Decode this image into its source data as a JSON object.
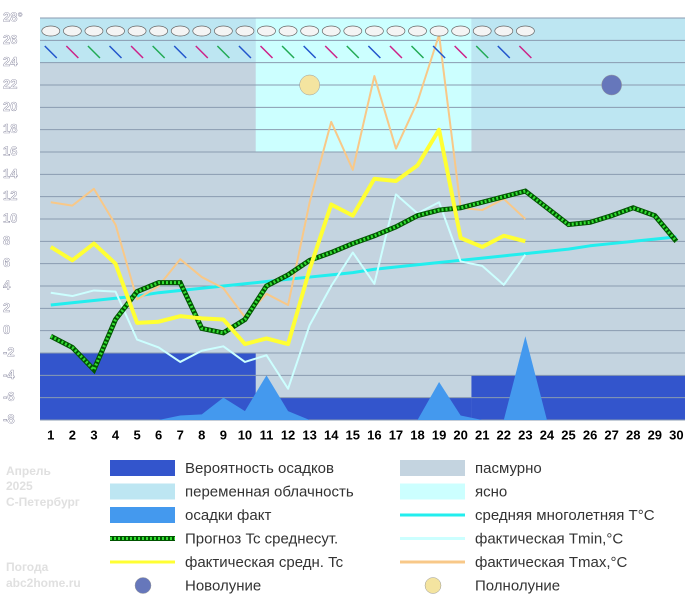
{
  "chart_data": {
    "type": "line",
    "side_texts": [
      "Апрель",
      "2025",
      "С-Петербург",
      "Погода",
      "abc2home.ru"
    ],
    "categories": [
      "1",
      "2",
      "3",
      "4",
      "5",
      "6",
      "7",
      "8",
      "9",
      "10",
      "11",
      "12",
      "13",
      "14",
      "15",
      "16",
      "17",
      "18",
      "19",
      "20",
      "21",
      "22",
      "23",
      "24",
      "25",
      "26",
      "27",
      "28",
      "29",
      "30"
    ],
    "weekend_color": "#ee0000",
    "weekend_categories": [
      4,
      5,
      11,
      12,
      18,
      19,
      25,
      26
    ],
    "xlim": [
      0.5,
      30.4
    ],
    "ylim": [
      -8,
      28
    ],
    "yticks": [
      {
        "value": 28,
        "label": "28°"
      },
      26,
      24,
      22,
      20,
      18,
      16,
      14,
      12,
      10,
      8,
      6,
      4,
      2,
      0,
      -2,
      -4,
      -6,
      -8
    ],
    "grid": true,
    "sky": [
      {
        "name": "переменная облачность",
        "color": "#bde6f2",
        "from": 0.5,
        "to": 10.5,
        "level": 24
      },
      {
        "name": "ясно",
        "color": "#ccffff",
        "from": 10.5,
        "to": 20.5,
        "level": 16
      },
      {
        "name": "переменная облачность",
        "color": "#bde6f2",
        "from": 20.5,
        "to": 30.4,
        "level": 18
      }
    ],
    "overcast": {
      "name": "пасмурно",
      "color": "#c4d4e0"
    },
    "precip_probability": {
      "name": "Вероятность осадков",
      "color": "#3355cc",
      "blocks": [
        {
          "from": 0.5,
          "to": 10.5,
          "value": -2
        },
        {
          "from": 10.5,
          "to": 20.5,
          "value": -6
        },
        {
          "from": 20.5,
          "to": 30.4,
          "value": -4
        }
      ]
    },
    "precip_fact": {
      "name": "осадки факт",
      "color": "#4499ee",
      "values": [
        -8,
        -8,
        -8,
        -8,
        -8,
        -8,
        -7.6,
        -7.5,
        -6,
        -7.2,
        -4,
        -7.2,
        -8,
        -8,
        -8,
        -8,
        -8,
        -8,
        -4.6,
        -7.6,
        -8,
        -8,
        -0.5,
        -8,
        -8,
        -8,
        -8,
        -8,
        -8,
        -8
      ]
    },
    "series": [
      {
        "name": "средняя многолетняя T°C",
        "color": "#22eeee",
        "width": 3,
        "values": [
          2.3,
          2.5,
          2.7,
          2.9,
          3.1,
          3.4,
          3.6,
          3.8,
          4.0,
          4.2,
          4.4,
          4.6,
          4.8,
          5.0,
          5.2,
          5.5,
          5.7,
          5.9,
          6.1,
          6.3,
          6.5,
          6.7,
          6.9,
          7.1,
          7.3,
          7.6,
          7.8,
          8.0,
          8.2,
          8.4
        ]
      },
      {
        "name": "фактическая Tmin,°C",
        "color": "#ccffff",
        "width": 2,
        "values": [
          3.4,
          3.1,
          3.6,
          3.5,
          -0.8,
          -1.5,
          -2.8,
          -1.8,
          -1.4,
          -2.8,
          -2.2,
          -5.2,
          0.5,
          4,
          7,
          4.2,
          12.2,
          10.5,
          11.5,
          6.2,
          5.8,
          4.1,
          6.8,
          null,
          null,
          null,
          null,
          null,
          null,
          null
        ]
      },
      {
        "name": "фактическая Tmax,°C",
        "color": "#f8c888",
        "width": 2,
        "values": [
          11.5,
          11.2,
          12.7,
          9.5,
          2.8,
          4,
          6.4,
          4.8,
          3.8,
          1.2,
          3.3,
          2.3,
          11.5,
          18.7,
          14.4,
          22.8,
          16.3,
          20.5,
          26.5,
          11,
          10.8,
          11.8,
          10,
          null,
          null,
          null,
          null,
          null,
          null,
          null
        ]
      },
      {
        "name": "Прогноз Tc среднесут.",
        "color": "#009900",
        "dashed": true,
        "width": 5,
        "values": [
          -0.5,
          -1.5,
          -3.5,
          1,
          3.5,
          4.3,
          4.3,
          0.2,
          -0.2,
          1,
          4,
          5,
          6.3,
          7,
          7.8,
          8.5,
          9.3,
          10.3,
          10.8,
          11,
          11.5,
          12,
          12.5,
          11,
          9.5,
          9.7,
          10.3,
          11,
          10.3,
          8
        ]
      },
      {
        "name": "фактическая средн. Tc",
        "color": "#ffff33",
        "width": 4,
        "values": [
          7.5,
          6.3,
          7.8,
          6,
          0.7,
          0.8,
          1.3,
          1.1,
          1,
          -1.2,
          -0.7,
          -1.2,
          5.5,
          11.3,
          10.3,
          13.6,
          13.4,
          14.8,
          18,
          8.3,
          7.5,
          8.5,
          8,
          null,
          null,
          null,
          null,
          null,
          null,
          null
        ]
      }
    ],
    "moons": [
      {
        "name": "Новолуние",
        "color": "#6677bb",
        "day": 27,
        "value": 22
      },
      {
        "name": "Полнолуние",
        "color": "#f4e4a0",
        "day": 13,
        "value": 22
      }
    ]
  }
}
